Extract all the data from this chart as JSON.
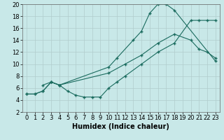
{
  "line1_x": [
    2,
    3,
    4,
    10,
    11,
    13,
    14,
    15,
    16,
    17,
    18,
    23
  ],
  "line1_y": [
    6.5,
    7.0,
    6.5,
    9.5,
    11.0,
    14.0,
    15.5,
    18.5,
    20.0,
    20.0,
    19.0,
    10.5
  ],
  "line2_x": [
    0,
    1,
    2,
    3,
    4,
    10,
    12,
    14,
    16,
    18,
    20,
    21,
    22,
    23
  ],
  "line2_y": [
    5.0,
    5.0,
    5.5,
    7.0,
    6.5,
    8.5,
    10.0,
    11.5,
    13.5,
    15.0,
    14.0,
    12.5,
    12.0,
    11.0
  ],
  "line3_x": [
    0,
    1,
    2,
    3,
    4,
    5,
    6,
    7,
    8,
    9,
    10,
    11,
    12,
    14,
    16,
    18,
    20,
    21,
    22,
    23
  ],
  "line3_y": [
    5.0,
    5.0,
    5.5,
    7.0,
    6.5,
    5.5,
    4.8,
    4.5,
    4.5,
    4.5,
    6.0,
    7.0,
    8.0,
    10.0,
    12.0,
    13.5,
    17.3,
    17.3,
    17.3,
    17.3
  ],
  "line_color": "#1a6b5e",
  "bg_color": "#c8e8e8",
  "grid_color": "#b0cccc",
  "xlabel": "Humidex (Indice chaleur)",
  "xlim": [
    -0.5,
    23.5
  ],
  "ylim": [
    2,
    20
  ],
  "xticks": [
    0,
    1,
    2,
    3,
    4,
    5,
    6,
    7,
    8,
    9,
    10,
    11,
    12,
    13,
    14,
    15,
    16,
    17,
    18,
    19,
    20,
    21,
    22,
    23
  ],
  "yticks": [
    2,
    4,
    6,
    8,
    10,
    12,
    14,
    16,
    18,
    20
  ],
  "xlabel_fontsize": 7.0,
  "tick_fontsize": 6.0
}
